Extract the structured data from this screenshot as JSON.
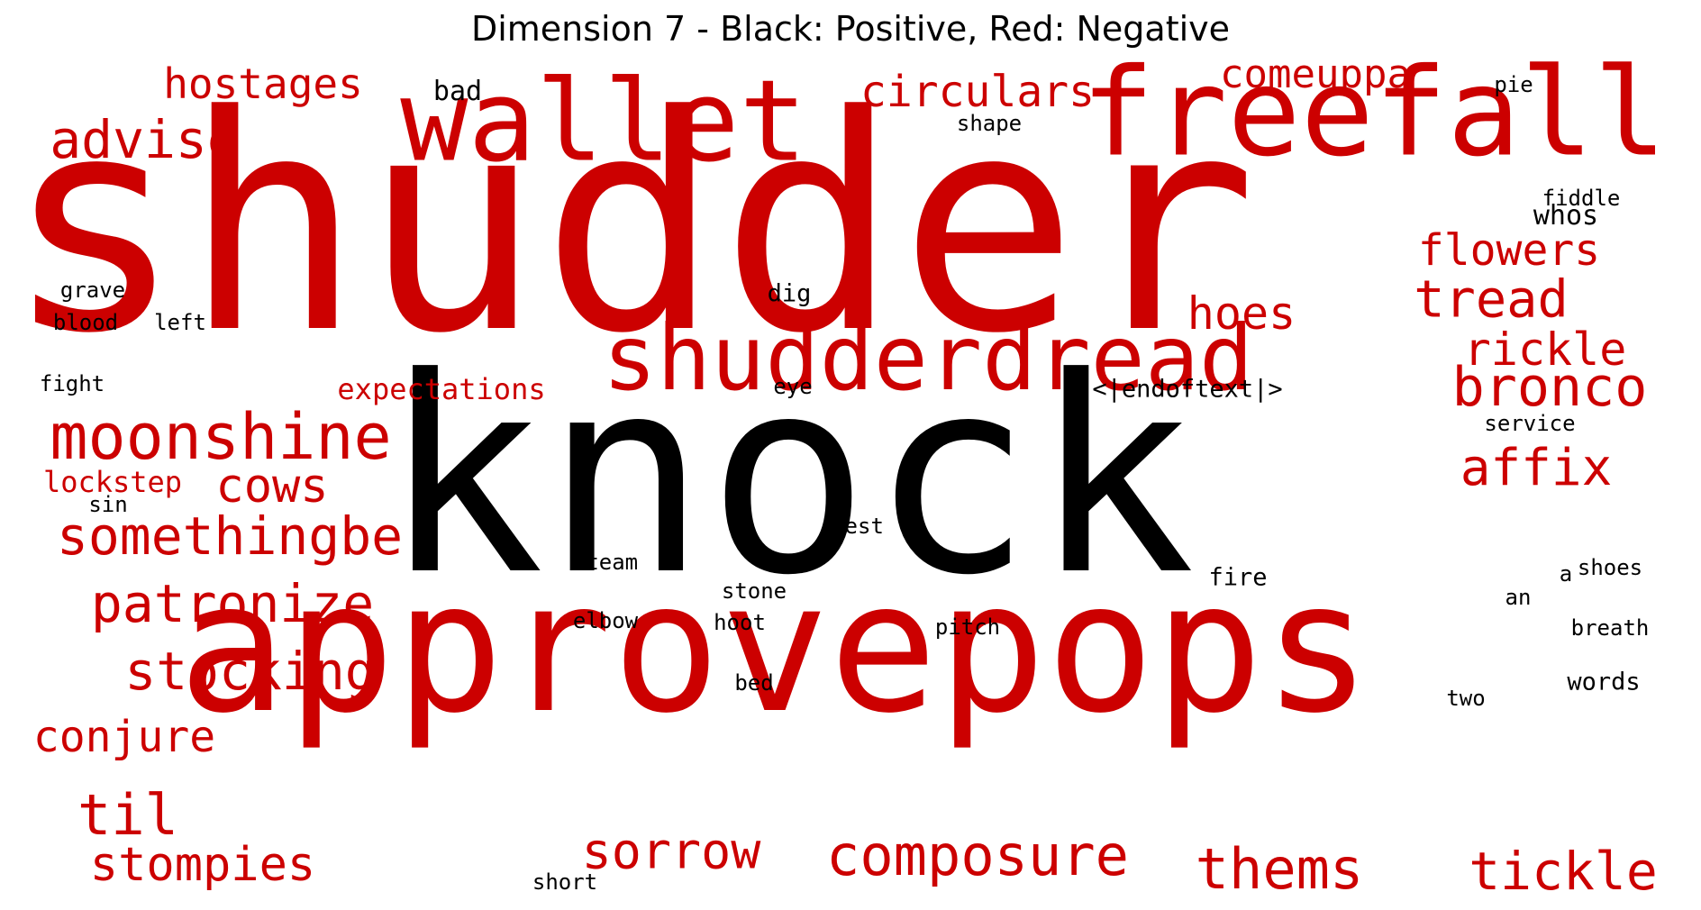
{
  "title": "Dimension 7 - Black: Positive, Red: Negative",
  "colors": {
    "positive": "#000000",
    "negative": "#cc0000",
    "background": "#ffffff"
  },
  "words": [
    {
      "text": "shudder",
      "polarity": "negative"
    },
    {
      "text": "knock",
      "polarity": "positive"
    },
    {
      "text": "approvepops",
      "polarity": "negative"
    },
    {
      "text": "freefall",
      "polarity": "negative"
    },
    {
      "text": "wallet",
      "polarity": "negative"
    },
    {
      "text": "shudderdread",
      "polarity": "negative"
    },
    {
      "text": "moonshine",
      "polarity": "negative"
    },
    {
      "text": "somethingbe",
      "polarity": "negative"
    },
    {
      "text": "patronize",
      "polarity": "negative"
    },
    {
      "text": "stocking",
      "polarity": "negative"
    },
    {
      "text": "composure",
      "polarity": "negative"
    },
    {
      "text": "sorrow",
      "polarity": "negative"
    },
    {
      "text": "thems",
      "polarity": "negative"
    },
    {
      "text": "tickle",
      "polarity": "negative"
    },
    {
      "text": "til",
      "polarity": "negative"
    },
    {
      "text": "stompies",
      "polarity": "negative"
    },
    {
      "text": "conjure",
      "polarity": "negative"
    },
    {
      "text": "advise",
      "polarity": "negative"
    },
    {
      "text": "hostages",
      "polarity": "negative"
    },
    {
      "text": "circulars",
      "polarity": "negative"
    },
    {
      "text": "comeuppa",
      "polarity": "negative"
    },
    {
      "text": "flowers",
      "polarity": "negative"
    },
    {
      "text": "tread",
      "polarity": "negative"
    },
    {
      "text": "rickle",
      "polarity": "negative"
    },
    {
      "text": "bronco",
      "polarity": "negative"
    },
    {
      "text": "affix",
      "polarity": "negative"
    },
    {
      "text": "hoes",
      "polarity": "negative"
    },
    {
      "text": "cows",
      "polarity": "negative"
    },
    {
      "text": "expectations",
      "polarity": "negative"
    },
    {
      "text": "lockstep",
      "polarity": "negative"
    },
    {
      "text": "bad",
      "polarity": "positive"
    },
    {
      "text": "shape",
      "polarity": "positive"
    },
    {
      "text": "pie",
      "polarity": "positive"
    },
    {
      "text": "whos",
      "polarity": "positive"
    },
    {
      "text": "fiddle",
      "polarity": "positive"
    },
    {
      "text": "grave",
      "polarity": "positive"
    },
    {
      "text": "blood",
      "polarity": "positive"
    },
    {
      "text": "left",
      "polarity": "positive"
    },
    {
      "text": "dig",
      "polarity": "positive"
    },
    {
      "text": "fight",
      "polarity": "positive"
    },
    {
      "text": "eye",
      "polarity": "positive"
    },
    {
      "text": "<|endoftext|>",
      "polarity": "positive"
    },
    {
      "text": "service",
      "polarity": "positive"
    },
    {
      "text": "sin",
      "polarity": "positive"
    },
    {
      "text": "best",
      "polarity": "positive"
    },
    {
      "text": "steam",
      "polarity": "positive"
    },
    {
      "text": "stone",
      "polarity": "positive"
    },
    {
      "text": "elbow",
      "polarity": "positive"
    },
    {
      "text": "hoot",
      "polarity": "positive"
    },
    {
      "text": "pitch",
      "polarity": "positive"
    },
    {
      "text": "fire",
      "polarity": "positive"
    },
    {
      "text": "a",
      "polarity": "positive"
    },
    {
      "text": "shoes",
      "polarity": "positive"
    },
    {
      "text": "an",
      "polarity": "positive"
    },
    {
      "text": "breath",
      "polarity": "positive"
    },
    {
      "text": "bed",
      "polarity": "positive"
    },
    {
      "text": "words",
      "polarity": "positive"
    },
    {
      "text": "two",
      "polarity": "positive"
    },
    {
      "text": "short",
      "polarity": "positive"
    }
  ]
}
